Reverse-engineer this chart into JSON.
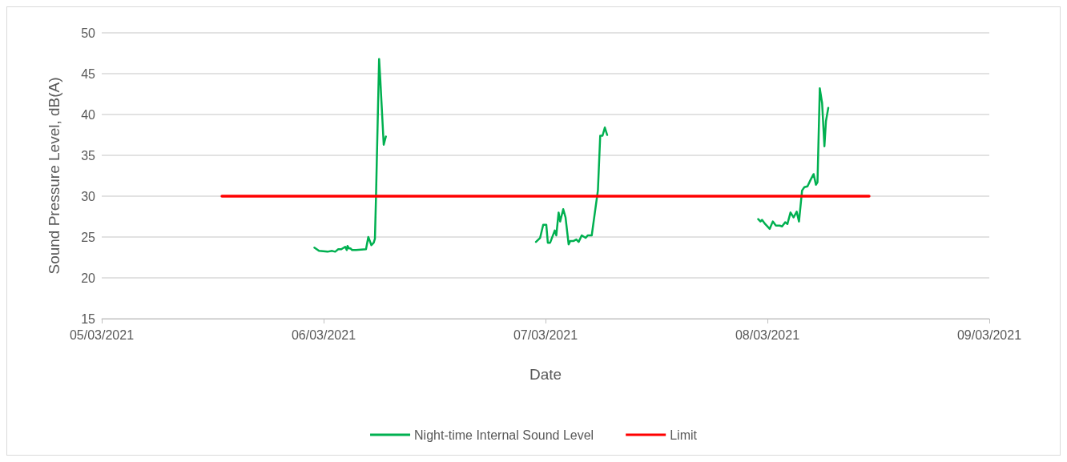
{
  "chart_data": {
    "type": "line",
    "xlabel": "Date",
    "ylabel": "Sound Pressure Level, dB(A)",
    "xlim": [
      "2021-03-05",
      "2021-03-09"
    ],
    "xticks": [
      {
        "value": "2021-03-05",
        "label": "05/03/2021"
      },
      {
        "value": "2021-03-06",
        "label": "06/03/2021"
      },
      {
        "value": "2021-03-07",
        "label": "07/03/2021"
      },
      {
        "value": "2021-03-08",
        "label": "08/03/2021"
      },
      {
        "value": "2021-03-09",
        "label": "09/03/2021"
      }
    ],
    "ylim": [
      15,
      50
    ],
    "yticks": [
      15,
      20,
      25,
      30,
      35,
      40,
      45,
      50
    ],
    "grid": "y",
    "legend": "bottom",
    "marker": "none",
    "line_style": "solid",
    "series": [
      {
        "name": "Night-time Internal Sound Level",
        "color": "#00b050",
        "x": [
          "2021-03-05T23:00",
          "2021-03-05T23:30",
          "2021-03-06T00:25",
          "2021-03-06T00:55",
          "2021-03-06T01:15",
          "2021-03-06T01:35",
          "2021-03-06T01:55",
          "2021-03-06T02:20",
          "2021-03-06T02:30",
          "2021-03-06T02:35",
          "2021-03-06T02:45",
          "2021-03-06T02:55",
          "2021-03-06T03:05",
          "2021-03-06T03:30",
          "2021-03-06T04:35",
          "2021-03-06T04:50",
          "2021-03-06T05:10",
          "2021-03-06T05:25",
          "2021-03-06T05:33",
          "2021-03-06T05:40",
          "2021-03-06T06:00",
          "2021-03-06T06:08",
          "2021-03-06T06:30",
          "2021-03-06T06:44",
          "2021-03-06T15:00",
          "2021-03-06T22:58",
          "2021-03-06T23:25",
          "2021-03-06T23:45",
          "2021-03-07T00:05",
          "2021-03-07T00:15",
          "2021-03-07T00:30",
          "2021-03-07T01:00",
          "2021-03-07T01:10",
          "2021-03-07T01:25",
          "2021-03-07T01:35",
          "2021-03-07T01:55",
          "2021-03-07T02:10",
          "2021-03-07T02:30",
          "2021-03-07T02:40",
          "2021-03-07T03:00",
          "2021-03-07T03:20",
          "2021-03-07T03:35",
          "2021-03-07T03:55",
          "2021-03-07T04:20",
          "2021-03-07T04:35",
          "2021-03-07T05:00",
          "2021-03-07T05:40",
          "2021-03-07T05:55",
          "2021-03-07T06:10",
          "2021-03-07T06:25",
          "2021-03-07T06:40",
          "2021-03-07T15:00",
          "2021-03-07T23:00",
          "2021-03-07T23:15",
          "2021-03-07T23:25",
          "2021-03-07T23:45",
          "2021-03-08T00:15",
          "2021-03-08T00:35",
          "2021-03-08T00:55",
          "2021-03-08T01:20",
          "2021-03-08T01:35",
          "2021-03-08T01:55",
          "2021-03-08T02:10",
          "2021-03-08T02:30",
          "2021-03-08T02:50",
          "2021-03-08T03:10",
          "2021-03-08T03:25",
          "2021-03-08T03:45",
          "2021-03-08T04:00",
          "2021-03-08T04:20",
          "2021-03-08T04:40",
          "2021-03-08T05:00",
          "2021-03-08T05:15",
          "2021-03-08T05:25",
          "2021-03-08T05:40",
          "2021-03-08T05:55",
          "2021-03-08T06:10",
          "2021-03-08T06:20",
          "2021-03-08T06:35"
        ],
        "values": [
          23.7,
          23.3,
          23.2,
          23.3,
          23.2,
          23.5,
          23.5,
          23.8,
          23.4,
          23.9,
          23.6,
          23.6,
          23.4,
          23.4,
          23.5,
          25.0,
          24.0,
          24.3,
          24.8,
          30.0,
          46.8,
          44.2,
          36.3,
          37.3,
          null,
          24.4,
          24.9,
          26.5,
          26.5,
          24.3,
          24.3,
          25.8,
          25.2,
          28.0,
          26.9,
          28.4,
          27.4,
          24.1,
          24.5,
          24.5,
          24.7,
          24.4,
          25.2,
          24.9,
          25.2,
          25.2,
          30.7,
          37.4,
          37.4,
          38.4,
          37.5,
          null,
          27.2,
          26.9,
          27.1,
          26.6,
          26.0,
          26.9,
          26.4,
          26.4,
          26.3,
          26.8,
          26.6,
          28.0,
          27.4,
          28.1,
          26.9,
          30.7,
          31.1,
          31.2,
          32.0,
          32.7,
          31.4,
          31.7,
          43.2,
          41.4,
          36.1,
          39.2,
          40.8
        ]
      },
      {
        "name": "Limit",
        "color": "#ff0000",
        "x": [
          "2021-03-05T13:00",
          "2021-03-08T11:00"
        ],
        "values": [
          30,
          30
        ]
      }
    ]
  }
}
